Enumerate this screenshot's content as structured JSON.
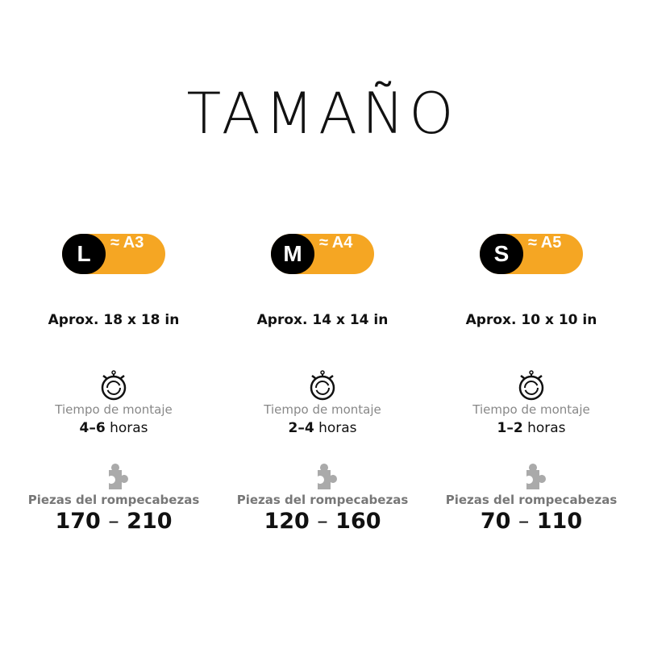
{
  "title": "TAMAÑO",
  "accent_color": "#F5A623",
  "sizes": [
    {
      "letter": "L",
      "paper": "≈ A3",
      "dims": "Aprox. 18 x 18 in",
      "time_label": "Tiempo de montaje",
      "time_range": "4–6",
      "time_unit": "horas",
      "pieces_label": "Piezas del rompecabezas",
      "pieces_min": "170",
      "pieces_sep": "–",
      "pieces_max": "210"
    },
    {
      "letter": "M",
      "paper": "≈ A4",
      "dims": "Aprox. 14 x 14 in",
      "time_label": "Tiempo de montaje",
      "time_range": "2–4",
      "time_unit": "horas",
      "pieces_label": "Piezas del rompecabezas",
      "pieces_min": "120",
      "pieces_sep": "–",
      "pieces_max": "160"
    },
    {
      "letter": "S",
      "paper": "≈ A5",
      "dims": "Aprox. 10 x 10 in",
      "time_label": "Tiempo de montaje",
      "time_range": "1–2",
      "time_unit": "horas",
      "pieces_label": "Piezas del rompecabezas",
      "pieces_min": "70",
      "pieces_sep": "–",
      "pieces_max": "110"
    }
  ]
}
